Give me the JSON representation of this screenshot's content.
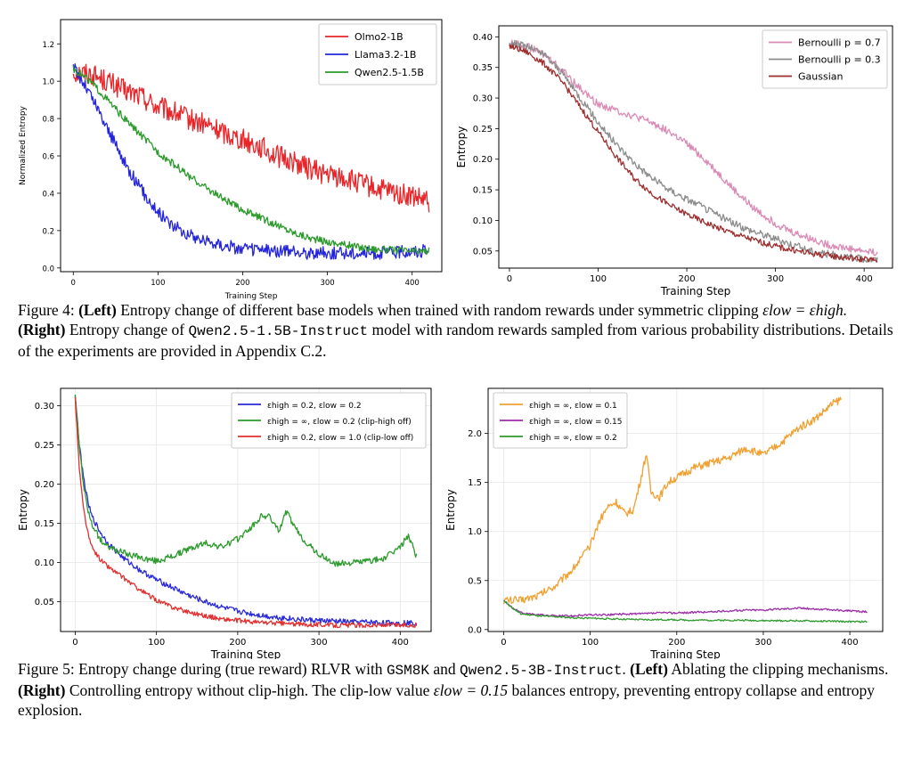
{
  "fig4": {
    "label": "Figure 4:",
    "left_label": "(Left)",
    "part1": "Entropy change of different base models when trained with random rewards under symmetric clipping",
    "eps_eq": "εlow = εhigh.",
    "right_label": "(Right)",
    "part2": "Entropy change of",
    "model_code": "Qwen2.5-1.5B-Instruct",
    "part3": "model with random rewards sampled from various probability distributions. Details of the experiments are provided in Appendix C.2."
  },
  "fig5": {
    "label": "Figure 5:",
    "part1": "Entropy change during (true reward) RLVR with",
    "dataset_code": "GSM8K",
    "and_text": "and",
    "model_code": "Qwen2.5-3B-Instruct",
    "left_label": "(Left)",
    "part2": "Ablating the clipping mechanisms.",
    "right_label": "(Right)",
    "part3": "Controlling entropy without clip-high. The clip-low value",
    "eps_val": "εlow = 0.15",
    "part4": "balances entropy, preventing entropy collapse and entropy explosion."
  },
  "chart_data": [
    {
      "id": "fig4-left",
      "type": "line",
      "xlabel": "Training Step",
      "ylabel": "Normalized Entropy",
      "xlim": [
        -15,
        435
      ],
      "ylim": [
        -0.02,
        1.33
      ],
      "xticks": [
        0,
        100,
        200,
        300,
        400
      ],
      "xtick_labels": [
        "0",
        "100",
        "200",
        "300",
        "400"
      ],
      "yticks": [
        0.0,
        0.2,
        0.4,
        0.6,
        0.8,
        1.0,
        1.2
      ],
      "ytick_labels": [
        "0.0",
        "0.2",
        "0.4",
        "0.6",
        "0.8",
        "1.0",
        "1.2"
      ],
      "legend": "top-right",
      "grid": false,
      "series": [
        {
          "name": "Olmo2-1B",
          "color": "#e8262a",
          "noise": 0.06,
          "x": [
            0,
            20,
            40,
            60,
            80,
            100,
            120,
            140,
            160,
            180,
            200,
            220,
            240,
            260,
            280,
            300,
            320,
            340,
            360,
            380,
            400,
            420
          ],
          "y": [
            1.05,
            1.04,
            1.0,
            0.95,
            0.92,
            0.86,
            0.83,
            0.79,
            0.76,
            0.72,
            0.69,
            0.65,
            0.6,
            0.57,
            0.53,
            0.5,
            0.48,
            0.45,
            0.42,
            0.4,
            0.38,
            0.35
          ]
        },
        {
          "name": "Llama3.2-1B",
          "color": "#2424dc",
          "noise": 0.035,
          "x": [
            0,
            20,
            40,
            60,
            80,
            100,
            120,
            140,
            160,
            180,
            200,
            220,
            240,
            260,
            280,
            300,
            320,
            340,
            360,
            380,
            400,
            420
          ],
          "y": [
            1.08,
            0.93,
            0.75,
            0.57,
            0.42,
            0.3,
            0.22,
            0.17,
            0.14,
            0.12,
            0.1,
            0.095,
            0.09,
            0.085,
            0.08,
            0.08,
            0.08,
            0.08,
            0.08,
            0.085,
            0.09,
            0.09
          ]
        },
        {
          "name": "Qwen2.5-1.5B",
          "color": "#2a9a2a",
          "noise": 0.02,
          "x": [
            0,
            20,
            40,
            60,
            80,
            100,
            120,
            140,
            160,
            180,
            200,
            220,
            240,
            260,
            280,
            300,
            320,
            340,
            360,
            380,
            400,
            420
          ],
          "y": [
            1.07,
            1.0,
            0.9,
            0.8,
            0.71,
            0.62,
            0.55,
            0.48,
            0.42,
            0.36,
            0.31,
            0.27,
            0.23,
            0.19,
            0.16,
            0.14,
            0.125,
            0.11,
            0.1,
            0.095,
            0.09,
            0.09
          ]
        }
      ]
    },
    {
      "id": "fig4-right",
      "type": "line",
      "xlabel": "Training Step",
      "ylabel": "Entropy",
      "xlim": [
        -12,
        432
      ],
      "ylim": [
        0.022,
        0.418
      ],
      "xticks": [
        0,
        100,
        200,
        300,
        400
      ],
      "xtick_labels": [
        "0",
        "100",
        "200",
        "300",
        "400"
      ],
      "yticks": [
        0.05,
        0.1,
        0.15,
        0.2,
        0.25,
        0.3,
        0.35,
        0.4
      ],
      "ytick_labels": [
        "0.05",
        "0.10",
        "0.15",
        "0.20",
        "0.25",
        "0.30",
        "0.35",
        "0.40"
      ],
      "legend": "top-right",
      "grid": false,
      "series": [
        {
          "name": "Bernoulli p = 0.7",
          "color": "#d98bb6",
          "noise": 0.006,
          "x": [
            0,
            20,
            40,
            60,
            80,
            100,
            120,
            140,
            160,
            180,
            200,
            220,
            240,
            260,
            280,
            300,
            320,
            340,
            360,
            380,
            400,
            415
          ],
          "y": [
            0.39,
            0.385,
            0.37,
            0.345,
            0.315,
            0.29,
            0.28,
            0.27,
            0.26,
            0.245,
            0.225,
            0.2,
            0.17,
            0.14,
            0.115,
            0.095,
            0.08,
            0.07,
            0.06,
            0.055,
            0.05,
            0.048
          ]
        },
        {
          "name": "Bernoulli p = 0.3",
          "color": "#8c8c8c",
          "noise": 0.006,
          "x": [
            0,
            20,
            40,
            60,
            80,
            100,
            120,
            140,
            160,
            180,
            200,
            220,
            240,
            260,
            280,
            300,
            320,
            340,
            360,
            380,
            400,
            415
          ],
          "y": [
            0.39,
            0.385,
            0.37,
            0.34,
            0.3,
            0.26,
            0.225,
            0.195,
            0.17,
            0.15,
            0.135,
            0.12,
            0.105,
            0.09,
            0.08,
            0.07,
            0.06,
            0.05,
            0.045,
            0.04,
            0.037,
            0.035
          ]
        },
        {
          "name": "Gaussian",
          "color": "#9e2d2d",
          "noise": 0.005,
          "x": [
            0,
            20,
            40,
            60,
            80,
            100,
            120,
            140,
            160,
            180,
            200,
            220,
            240,
            260,
            280,
            300,
            320,
            340,
            360,
            380,
            400,
            415
          ],
          "y": [
            0.385,
            0.375,
            0.355,
            0.325,
            0.285,
            0.245,
            0.205,
            0.17,
            0.145,
            0.125,
            0.11,
            0.097,
            0.085,
            0.075,
            0.066,
            0.058,
            0.051,
            0.046,
            0.042,
            0.039,
            0.036,
            0.035
          ]
        }
      ]
    },
    {
      "id": "fig5-left",
      "type": "line",
      "xlabel": "Training Step",
      "ylabel": "Entropy",
      "xlim": [
        -18,
        438
      ],
      "ylim": [
        0.012,
        0.322
      ],
      "xticks": [
        0,
        100,
        200,
        300,
        400
      ],
      "xtick_labels": [
        "0",
        "100",
        "200",
        "300",
        "400"
      ],
      "yticks": [
        0.05,
        0.1,
        0.15,
        0.2,
        0.25,
        0.3
      ],
      "ytick_labels": [
        "0.05",
        "0.10",
        "0.15",
        "0.20",
        "0.25",
        "0.30"
      ],
      "legend": "top-right",
      "grid": true,
      "series": [
        {
          "name": "εhigh = 0.2, εlow = 0.2",
          "color": "#2a2ad8",
          "noise": 0.0035,
          "x": [
            0,
            5,
            10,
            15,
            20,
            30,
            40,
            60,
            80,
            100,
            120,
            140,
            160,
            180,
            200,
            220,
            240,
            260,
            280,
            300,
            320,
            340,
            360,
            380,
            400,
            420
          ],
          "y": [
            0.315,
            0.25,
            0.21,
            0.18,
            0.16,
            0.14,
            0.125,
            0.105,
            0.09,
            0.078,
            0.068,
            0.058,
            0.05,
            0.043,
            0.038,
            0.034,
            0.031,
            0.029,
            0.027,
            0.026,
            0.025,
            0.024,
            0.024,
            0.023,
            0.023,
            0.023
          ]
        },
        {
          "name": "εhigh = ∞, εlow = 0.2 (clip-high off)",
          "color": "#2c9a2c",
          "noise": 0.004,
          "x": [
            0,
            5,
            10,
            15,
            20,
            30,
            40,
            60,
            80,
            100,
            120,
            140,
            160,
            180,
            200,
            220,
            230,
            240,
            250,
            260,
            270,
            280,
            300,
            320,
            340,
            360,
            380,
            400,
            410,
            420
          ],
          "y": [
            0.315,
            0.25,
            0.2,
            0.17,
            0.15,
            0.13,
            0.12,
            0.112,
            0.106,
            0.102,
            0.108,
            0.117,
            0.125,
            0.12,
            0.13,
            0.148,
            0.16,
            0.158,
            0.14,
            0.165,
            0.145,
            0.13,
            0.11,
            0.098,
            0.1,
            0.102,
            0.105,
            0.12,
            0.135,
            0.108
          ]
        },
        {
          "name": "εhigh = 0.2, εlow = 1.0 (clip-low off)",
          "color": "#e03030",
          "noise": 0.003,
          "x": [
            0,
            5,
            10,
            15,
            20,
            30,
            40,
            60,
            80,
            100,
            120,
            140,
            160,
            180,
            200,
            220,
            240,
            260,
            280,
            300,
            320,
            340,
            360,
            380,
            400,
            420
          ],
          "y": [
            0.31,
            0.22,
            0.17,
            0.14,
            0.12,
            0.105,
            0.095,
            0.08,
            0.065,
            0.052,
            0.043,
            0.037,
            0.032,
            0.028,
            0.026,
            0.024,
            0.023,
            0.022,
            0.021,
            0.021,
            0.02,
            0.02,
            0.02,
            0.02,
            0.02,
            0.02
          ]
        }
      ]
    },
    {
      "id": "fig5-right",
      "type": "line",
      "xlabel": "Training Step",
      "ylabel": "Entropy",
      "xlim": [
        -18,
        438
      ],
      "ylim": [
        -0.02,
        2.46
      ],
      "xticks": [
        0,
        100,
        200,
        300,
        400
      ],
      "xtick_labels": [
        "0",
        "100",
        "200",
        "300",
        "400"
      ],
      "yticks": [
        0.0,
        0.5,
        1.0,
        1.5,
        2.0
      ],
      "ytick_labels": [
        "0.0",
        "0.5",
        "1.0",
        "1.5",
        "2.0"
      ],
      "legend": "top-left",
      "grid": true,
      "series": [
        {
          "name": "εhigh = ∞, εlow = 0.1",
          "color": "#f0a030",
          "noise": 0.04,
          "x": [
            0,
            20,
            40,
            60,
            80,
            100,
            110,
            120,
            130,
            140,
            150,
            160,
            165,
            170,
            180,
            190,
            200,
            220,
            240,
            260,
            280,
            300,
            320,
            340,
            360,
            380,
            390
          ],
          "y": [
            0.3,
            0.3,
            0.35,
            0.45,
            0.62,
            0.85,
            1.1,
            1.25,
            1.3,
            1.18,
            1.22,
            1.6,
            1.8,
            1.4,
            1.35,
            1.5,
            1.55,
            1.65,
            1.7,
            1.75,
            1.85,
            1.78,
            1.9,
            2.05,
            2.15,
            2.3,
            2.35
          ]
        },
        {
          "name": "εhigh = ∞, εlow = 0.15",
          "color": "#9c2ca8",
          "noise": 0.01,
          "x": [
            0,
            10,
            20,
            40,
            60,
            80,
            100,
            120,
            140,
            160,
            180,
            200,
            220,
            240,
            260,
            280,
            300,
            320,
            340,
            360,
            380,
            400,
            420
          ],
          "y": [
            0.3,
            0.22,
            0.17,
            0.15,
            0.14,
            0.14,
            0.15,
            0.15,
            0.16,
            0.16,
            0.17,
            0.17,
            0.175,
            0.18,
            0.19,
            0.2,
            0.2,
            0.21,
            0.22,
            0.21,
            0.2,
            0.19,
            0.18
          ]
        },
        {
          "name": "εhigh = ∞, εlow = 0.2",
          "color": "#2e9a2e",
          "noise": 0.008,
          "x": [
            0,
            10,
            20,
            40,
            60,
            80,
            100,
            120,
            140,
            160,
            180,
            200,
            220,
            240,
            260,
            280,
            300,
            320,
            340,
            360,
            380,
            400,
            420
          ],
          "y": [
            0.3,
            0.22,
            0.16,
            0.14,
            0.13,
            0.12,
            0.115,
            0.11,
            0.105,
            0.1,
            0.1,
            0.1,
            0.095,
            0.095,
            0.095,
            0.095,
            0.09,
            0.09,
            0.09,
            0.085,
            0.085,
            0.08,
            0.08
          ]
        }
      ]
    }
  ]
}
